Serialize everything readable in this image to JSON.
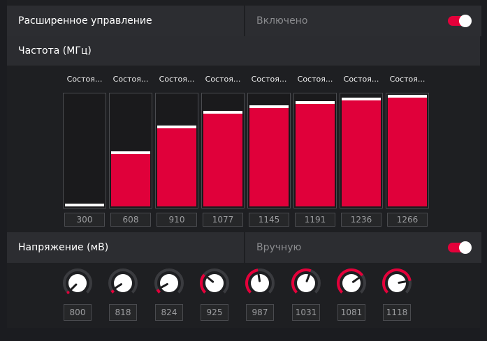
{
  "advanced": {
    "label": "Расширенное управление",
    "status": "Включено"
  },
  "frequency": {
    "label": "Частота (МГц)",
    "state_label": "Состоя...",
    "max": 1300,
    "states": [
      {
        "value": "300",
        "level": 300
      },
      {
        "value": "608",
        "level": 608
      },
      {
        "value": "910",
        "level": 910
      },
      {
        "value": "1077",
        "level": 1077
      },
      {
        "value": "1145",
        "level": 1145
      },
      {
        "value": "1191",
        "level": 1191
      },
      {
        "value": "1236",
        "level": 1236
      },
      {
        "value": "1266",
        "level": 1266
      }
    ]
  },
  "voltage": {
    "label": "Напряжение (мВ)",
    "mode": "Вручную",
    "min": 800,
    "max": 1200,
    "states": [
      {
        "value": "800",
        "level": 800
      },
      {
        "value": "818",
        "level": 818
      },
      {
        "value": "824",
        "level": 824
      },
      {
        "value": "925",
        "level": 925
      },
      {
        "value": "987",
        "level": 987
      },
      {
        "value": "1031",
        "level": 1031
      },
      {
        "value": "1081",
        "level": 1081
      },
      {
        "value": "1118",
        "level": 1118
      }
    ]
  },
  "colors": {
    "accent": "#e4003a",
    "track": "#3a3b3f",
    "knob": "#ffffff"
  }
}
